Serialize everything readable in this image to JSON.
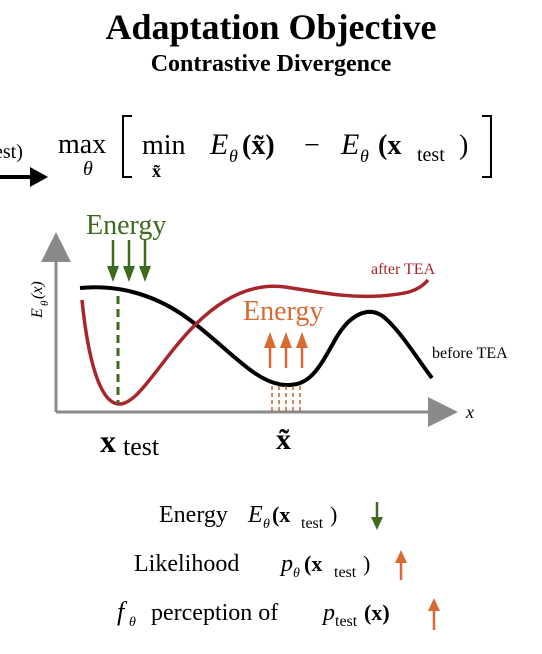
{
  "header": {
    "title": "Adaptation Objective",
    "subtitle": "Contrastive Divergence"
  },
  "objective": {
    "left_fragment": "est)",
    "max_op": "max",
    "max_sub": "θ",
    "min_op": "min",
    "min_sub": "x̃",
    "expression": "E",
    "theta": "θ",
    "x_tilde": "(x̃)",
    "minus": "−",
    "x_test": "(x",
    "test_sub": "test",
    "close_paren": ")"
  },
  "plot": {
    "y_axis_label": "E",
    "y_axis_label_sub": "θ",
    "y_axis_label_arg": "(x)",
    "x_axis_label": "x",
    "energy_down_label": "Energy",
    "energy_up_label": "Energy",
    "after_label": "after TEA",
    "before_label": "before TEA",
    "x_test_label": "x",
    "x_test_sub": "test",
    "x_tilde_label": "x̃",
    "colors": {
      "after": "#a7262c",
      "before": "#000000",
      "energy_down": "#3c6a1e",
      "energy_up": "#d86a34",
      "axis": "#8a8a8a"
    }
  },
  "legend": {
    "energy_word": "Energy",
    "energy_expr": "E",
    "energy_sub": "θ",
    "energy_arg": "(x",
    "energy_arg_sub": "test",
    "energy_close": ")",
    "likelihood_word": "Likelihood",
    "likelihood_expr": "p",
    "likelihood_sub": "θ",
    "likelihood_arg": "(x",
    "likelihood_arg_sub": "test",
    "likelihood_close": ")",
    "perception_f": "f",
    "perception_sub": "θ",
    "perception_word": "perception of",
    "perception_p": "p",
    "perception_p_sub": "test",
    "perception_arg": "(x)"
  }
}
